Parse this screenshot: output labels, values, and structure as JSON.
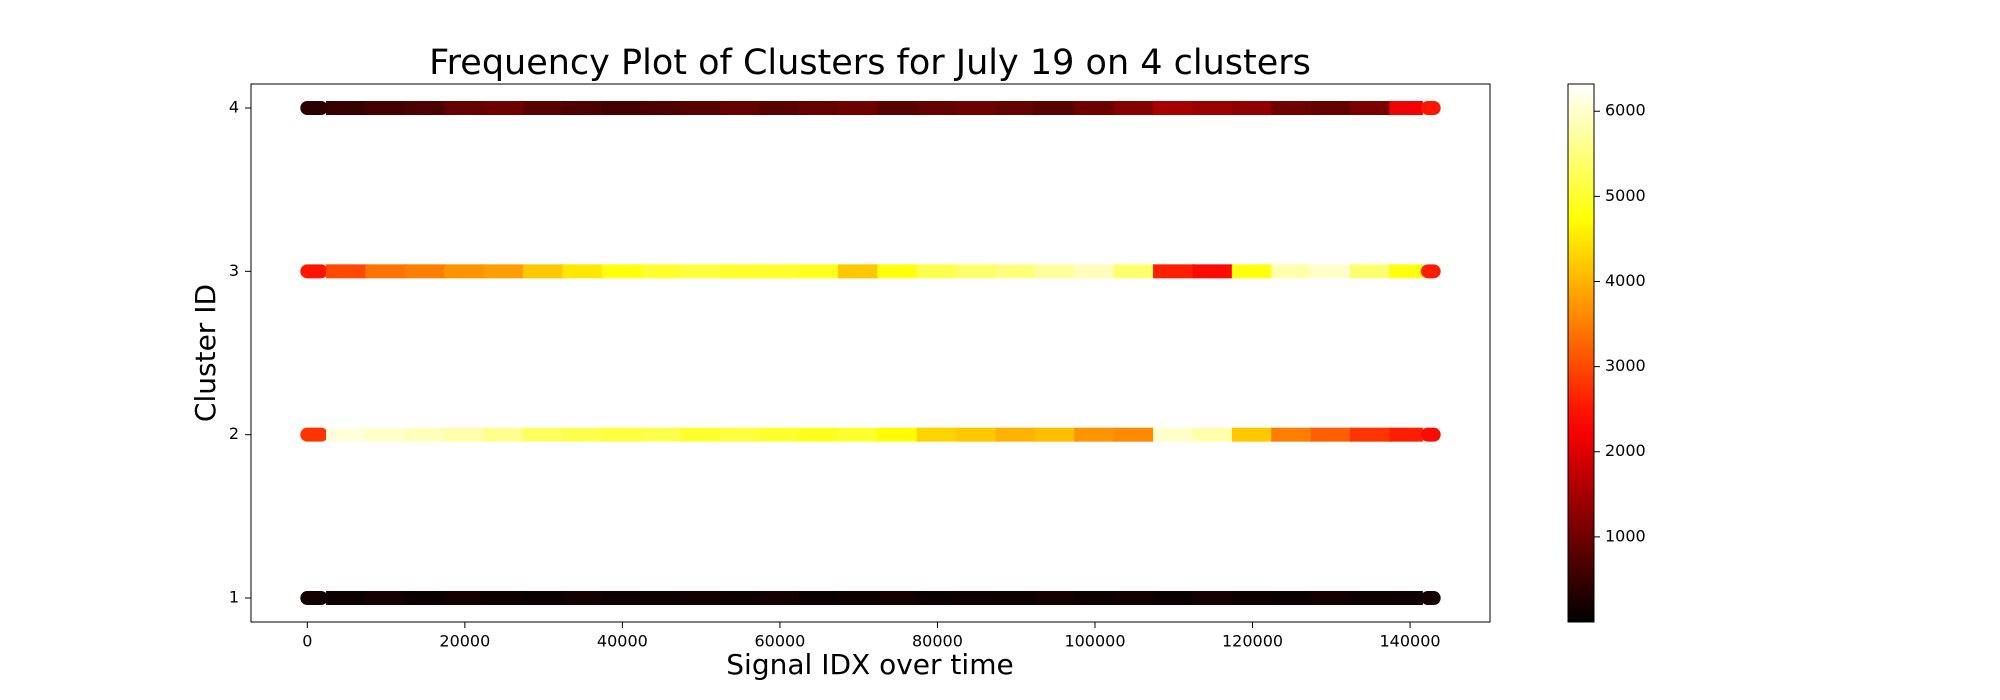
{
  "chart_data": {
    "type": "scatter",
    "title": "Frequency Plot of Clusters for July 19 on 4 clusters",
    "x_label": "Signal IDX over time",
    "y_label": "Cluster ID",
    "x": [
      0,
      5000,
      10000,
      15000,
      20000,
      25000,
      30000,
      35000,
      40000,
      45000,
      50000,
      55000,
      60000,
      65000,
      70000,
      75000,
      80000,
      85000,
      90000,
      95000,
      100000,
      105000,
      110000,
      115000,
      120000,
      125000,
      130000,
      135000,
      140000,
      143000
    ],
    "series": [
      {
        "values": [
          1,
          1,
          1,
          1,
          1,
          1,
          1,
          1,
          1,
          1,
          1,
          1,
          1,
          1,
          1,
          1,
          1,
          1,
          1,
          1,
          1,
          1,
          1,
          1,
          1,
          1,
          1,
          1,
          1,
          1
        ],
        "color_values": [
          150,
          120,
          180,
          100,
          160,
          130,
          90,
          170,
          140,
          110,
          150,
          120,
          180,
          100,
          130,
          160,
          90,
          140,
          110,
          170,
          120,
          150,
          100,
          180,
          130,
          90,
          160,
          110,
          140,
          200
        ]
      },
      {
        "values": [
          2,
          2,
          2,
          2,
          2,
          2,
          2,
          2,
          2,
          2,
          2,
          2,
          2,
          2,
          2,
          2,
          2,
          2,
          2,
          2,
          2,
          2,
          2,
          2,
          2,
          2,
          2,
          2,
          2,
          2
        ],
        "color_values": [
          2800,
          6100,
          6000,
          5900,
          5800,
          5600,
          5300,
          5200,
          5100,
          5200,
          5000,
          5100,
          5000,
          4900,
          5000,
          4700,
          4300,
          4200,
          4000,
          4100,
          3700,
          3600,
          6000,
          5800,
          4200,
          3500,
          3200,
          2800,
          2600,
          2400
        ]
      },
      {
        "values": [
          3,
          3,
          3,
          3,
          3,
          3,
          3,
          3,
          3,
          3,
          3,
          3,
          3,
          3,
          3,
          3,
          3,
          3,
          3,
          3,
          3,
          3,
          3,
          3,
          3,
          3,
          3,
          3,
          3,
          3
        ],
        "color_values": [
          2500,
          3000,
          3400,
          3500,
          3700,
          3800,
          4200,
          4500,
          4800,
          5000,
          5100,
          5000,
          5000,
          4900,
          4200,
          4800,
          5200,
          5400,
          5500,
          5700,
          5900,
          5400,
          2600,
          2400,
          4800,
          5800,
          6000,
          5400,
          4800,
          2600
        ]
      },
      {
        "values": [
          4,
          4,
          4,
          4,
          4,
          4,
          4,
          4,
          4,
          4,
          4,
          4,
          4,
          4,
          4,
          4,
          4,
          4,
          4,
          4,
          4,
          4,
          4,
          4,
          4,
          4,
          4,
          4,
          4,
          4
        ],
        "color_values": [
          400,
          500,
          600,
          700,
          900,
          1000,
          800,
          700,
          600,
          700,
          800,
          900,
          800,
          900,
          1000,
          800,
          900,
          1000,
          900,
          800,
          1000,
          1200,
          1500,
          1400,
          1300,
          1000,
          900,
          1100,
          2200,
          2500
        ]
      }
    ],
    "colormap": "hot",
    "xlim": [
      -7150,
      150150
    ],
    "ylim": [
      0.853,
      4.147
    ],
    "xticks": [
      0,
      20000,
      40000,
      60000,
      80000,
      100000,
      120000,
      140000
    ],
    "yticks": [
      1,
      2,
      3,
      4
    ],
    "clim": [
      0,
      6320
    ],
    "colorbar_ticks": [
      1000,
      2000,
      3000,
      4000,
      5000,
      6000
    ]
  }
}
